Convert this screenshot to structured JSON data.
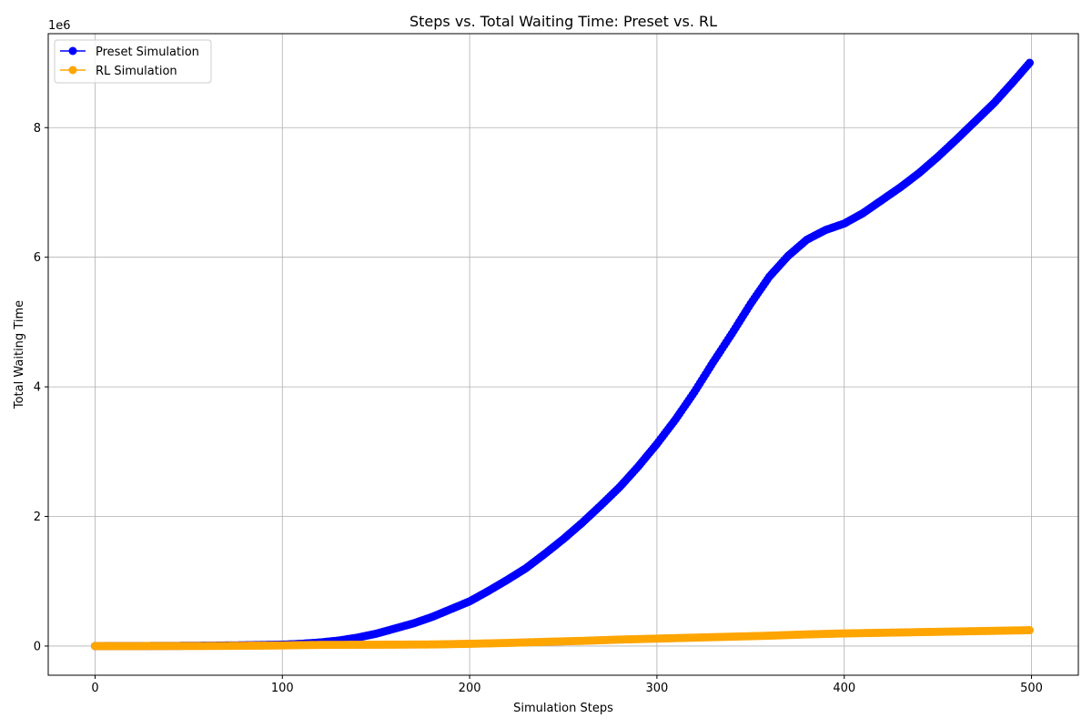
{
  "chart_data": {
    "type": "line",
    "title": "Steps vs. Total Waiting Time: Preset vs. RL",
    "xlabel": "Simulation Steps",
    "ylabel": "Total Waiting Time",
    "y_offset_label": "1e6",
    "xlim": [
      -25,
      525
    ],
    "ylim": [
      -0.45,
      9.45
    ],
    "y_scale_factor": 1000000,
    "x_ticks": [
      0,
      100,
      200,
      300,
      400,
      500
    ],
    "y_ticks": [
      0,
      2,
      4,
      6,
      8
    ],
    "x_tick_labels": [
      "0",
      "100",
      "200",
      "300",
      "400",
      "500"
    ],
    "y_tick_labels": [
      "0",
      "2",
      "4",
      "6",
      "8"
    ],
    "grid": true,
    "legend_position": "top-left",
    "series": [
      {
        "name": "Preset Simulation",
        "color": "#0000ff",
        "marker": "circle",
        "x": [
          0,
          20,
          40,
          60,
          80,
          100,
          110,
          120,
          130,
          140,
          150,
          160,
          170,
          180,
          190,
          200,
          210,
          220,
          230,
          240,
          250,
          260,
          270,
          280,
          290,
          300,
          310,
          320,
          330,
          340,
          350,
          360,
          370,
          380,
          390,
          400,
          410,
          420,
          430,
          440,
          450,
          460,
          470,
          480,
          490,
          499
        ],
        "y": [
          0,
          0.001,
          0.003,
          0.006,
          0.012,
          0.022,
          0.035,
          0.055,
          0.085,
          0.13,
          0.19,
          0.27,
          0.35,
          0.45,
          0.57,
          0.69,
          0.85,
          1.02,
          1.2,
          1.42,
          1.65,
          1.9,
          2.17,
          2.45,
          2.77,
          3.12,
          3.5,
          3.92,
          4.38,
          4.82,
          5.28,
          5.7,
          6.02,
          6.27,
          6.42,
          6.52,
          6.68,
          6.88,
          7.08,
          7.3,
          7.55,
          7.82,
          8.1,
          8.38,
          8.7,
          9.0
        ]
      },
      {
        "name": "RL Simulation",
        "color": "#ffa500",
        "marker": "circle",
        "x": [
          0,
          20,
          40,
          60,
          80,
          100,
          110,
          120,
          140,
          160,
          180,
          200,
          220,
          240,
          260,
          280,
          300,
          320,
          340,
          360,
          380,
          400,
          420,
          440,
          460,
          480,
          499
        ],
        "y": [
          0,
          0,
          0.001,
          0.002,
          0.005,
          0.01,
          0.015,
          0.018,
          0.02,
          0.022,
          0.025,
          0.035,
          0.048,
          0.065,
          0.08,
          0.1,
          0.115,
          0.13,
          0.145,
          0.16,
          0.18,
          0.195,
          0.205,
          0.215,
          0.225,
          0.235,
          0.245
        ]
      }
    ]
  }
}
